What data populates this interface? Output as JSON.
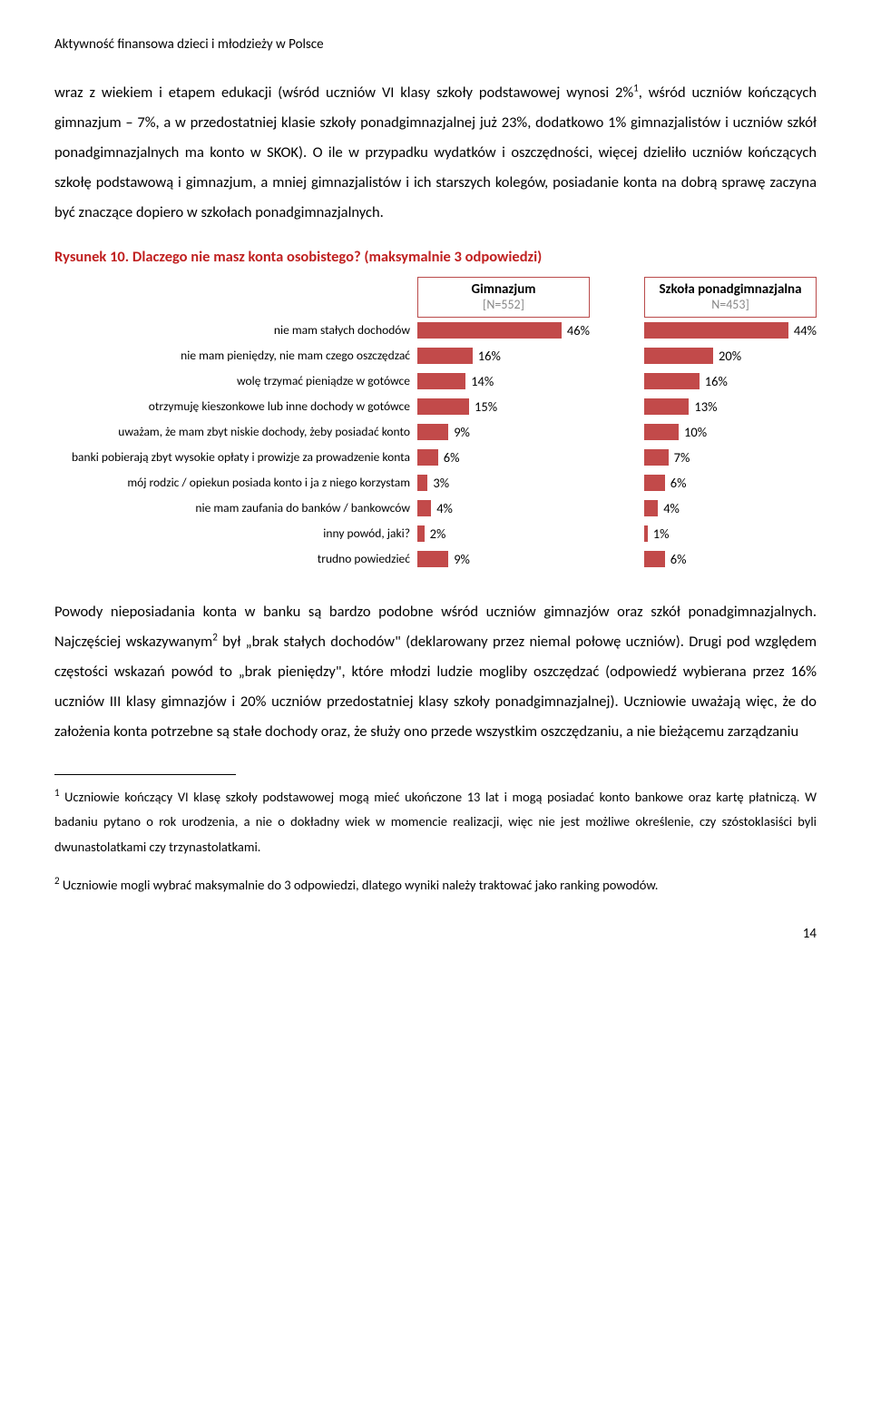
{
  "header": "Aktywność finansowa dzieci i młodzieży w Polsce",
  "para1_a": "wraz z wiekiem i etapem edukacji (wśród uczniów VI klasy szkoły podstawowej wynosi 2%",
  "para1_b": ", wśród uczniów kończących gimnazjum – 7%, a w przedostatniej klasie szkoły ponadgimnazjalnej już 23%, dodatkowo 1% gimnazjalistów i uczniów szkół ponadgimnazjalnych ma konto w SKOK). O ile w przypadku wydatków i oszczędności, więcej dzieliło uczniów kończących szkołę podstawową i gimnazjum, a mniej gimnazjalistów i ich starszych kolegów, posiadanie konta na dobrą sprawę zaczyna być znaczące dopiero w szkołach ponadgimnazjalnych.",
  "figure_title": "Rysunek 10. Dlaczego nie masz konta osobistego? (maksymalnie 3 odpowiedzi)",
  "chart": {
    "bar_color": "#c24a4a",
    "max_value": 50,
    "col1": {
      "title": "Gimnazjum",
      "sub": "[N=552]"
    },
    "col2": {
      "title": "Szkoła ponadgimnazjalna",
      "sub": "N=453]"
    },
    "rows": [
      {
        "label": "nie mam stałych dochodów",
        "v1": 46,
        "v2": 44
      },
      {
        "label": "nie mam pieniędzy, nie mam czego oszczędzać",
        "v1": 16,
        "v2": 20
      },
      {
        "label": "wolę trzymać pieniądze w gotówce",
        "v1": 14,
        "v2": 16
      },
      {
        "label": "otrzymuję kieszonkowe lub inne dochody w gotówce",
        "v1": 15,
        "v2": 13
      },
      {
        "label": "uważam, że mam zbyt niskie dochody, żeby posiadać konto",
        "v1": 9,
        "v2": 10
      },
      {
        "label": "banki pobierają zbyt wysokie opłaty i prowizje za prowadzenie konta",
        "v1": 6,
        "v2": 7
      },
      {
        "label": "mój rodzic /  opiekun posiada konto i ja z niego korzystam",
        "v1": 3,
        "v2": 6
      },
      {
        "label": "nie mam zaufania do banków /  bankowców",
        "v1": 4,
        "v2": 4
      },
      {
        "label": "inny powód, jaki?",
        "v1": 2,
        "v2": 1
      },
      {
        "label": "trudno powiedzieć",
        "v1": 9,
        "v2": 6
      }
    ]
  },
  "para2_a": "Powody nieposiadania konta w banku są bardzo podobne wśród uczniów gimnazjów oraz szkół ponadgimnazjalnych. Najczęściej wskazywanym",
  "para2_b": " był „brak stałych dochodów\" (deklarowany przez niemal połowę uczniów). Drugi pod względem częstości wskazań powód to „brak pieniędzy\", które młodzi ludzie mogliby oszczędzać (odpowiedź wybierana przez 16% uczniów III klasy gimnazjów i 20% uczniów przedostatniej klasy szkoły ponadgimnazjalnej). Uczniowie uważają więc, że do założenia konta potrzebne są stałe dochody oraz, że służy ono przede wszystkim oszczędzaniu, a nie bieżącemu zarządzaniu",
  "footnote1_sup": "1",
  "footnote1": " Uczniowie kończący VI klasę szkoły podstawowej mogą mieć ukończone 13 lat i mogą posiadać konto bankowe oraz kartę płatniczą. W badaniu pytano o rok urodzenia, a nie o dokładny wiek w momencie realizacji, więc nie jest możliwe określenie, czy szóstoklasiści byli dwunastolatkami czy trzynastolatkami.",
  "footnote2_sup": "2",
  "footnote2": " Uczniowie mogli wybrać maksymalnie do 3 odpowiedzi, dlatego wyniki należy traktować jako ranking powodów.",
  "page_number": "14"
}
